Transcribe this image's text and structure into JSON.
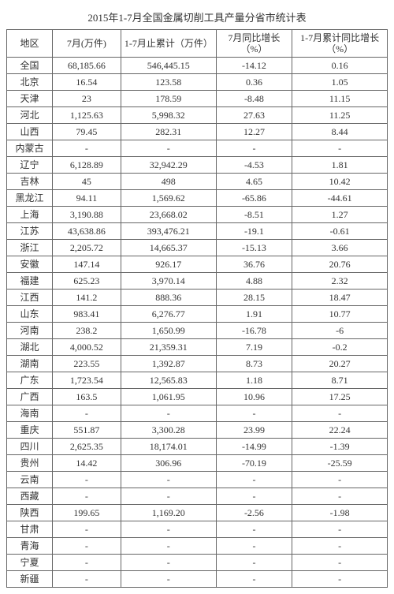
{
  "title": "2015年1-7月全国金属切削工具产量分省市统计表",
  "table": {
    "columns": [
      "地区",
      "7月(万件)",
      "1-7月止累计（万件）",
      "7月同比增长（%）",
      "1-7月累计同比增长（%）"
    ],
    "rows": [
      [
        "全国",
        "68,185.66",
        "546,445.15",
        "-14.12",
        "0.16"
      ],
      [
        "北京",
        "16.54",
        "123.58",
        "0.36",
        "1.05"
      ],
      [
        "天津",
        "23",
        "178.59",
        "-8.48",
        "11.15"
      ],
      [
        "河北",
        "1,125.63",
        "5,998.32",
        "27.63",
        "11.25"
      ],
      [
        "山西",
        "79.45",
        "282.31",
        "12.27",
        "8.44"
      ],
      [
        "内蒙古",
        "-",
        "-",
        "-",
        "-"
      ],
      [
        "辽宁",
        "6,128.89",
        "32,942.29",
        "-4.53",
        "1.81"
      ],
      [
        "吉林",
        "45",
        "498",
        "4.65",
        "10.42"
      ],
      [
        "黑龙江",
        "94.11",
        "1,569.62",
        "-65.86",
        "-44.61"
      ],
      [
        "上海",
        "3,190.88",
        "23,668.02",
        "-8.51",
        "1.27"
      ],
      [
        "江苏",
        "43,638.86",
        "393,476.21",
        "-19.1",
        "-0.61"
      ],
      [
        "浙江",
        "2,205.72",
        "14,665.37",
        "-15.13",
        "3.66"
      ],
      [
        "安徽",
        "147.14",
        "926.17",
        "36.76",
        "20.76"
      ],
      [
        "福建",
        "625.23",
        "3,970.14",
        "4.88",
        "2.32"
      ],
      [
        "江西",
        "141.2",
        "888.36",
        "28.15",
        "18.47"
      ],
      [
        "山东",
        "983.41",
        "6,276.77",
        "1.91",
        "10.77"
      ],
      [
        "河南",
        "238.2",
        "1,650.99",
        "-16.78",
        "-6"
      ],
      [
        "湖北",
        "4,000.52",
        "21,359.31",
        "7.19",
        "-0.2"
      ],
      [
        "湖南",
        "223.55",
        "1,392.87",
        "8.73",
        "20.27"
      ],
      [
        "广东",
        "1,723.54",
        "12,565.83",
        "1.18",
        "8.71"
      ],
      [
        "广西",
        "163.5",
        "1,061.95",
        "10.96",
        "17.25"
      ],
      [
        "海南",
        "-",
        "-",
        "-",
        "-"
      ],
      [
        "重庆",
        "551.87",
        "3,300.28",
        "23.99",
        "22.24"
      ],
      [
        "四川",
        "2,625.35",
        "18,174.01",
        "-14.99",
        "-1.39"
      ],
      [
        "贵州",
        "14.42",
        "306.96",
        "-70.19",
        "-25.59"
      ],
      [
        "云南",
        "-",
        "-",
        "-",
        "-"
      ],
      [
        "西藏",
        "-",
        "-",
        "-",
        "-"
      ],
      [
        "陕西",
        "199.65",
        "1,169.20",
        "-2.56",
        "-1.98"
      ],
      [
        "甘肃",
        "-",
        "-",
        "-",
        "-"
      ],
      [
        "青海",
        "-",
        "-",
        "-",
        "-"
      ],
      [
        "宁夏",
        "-",
        "-",
        "-",
        "-"
      ],
      [
        "新疆",
        "-",
        "-",
        "-",
        "-"
      ]
    ]
  }
}
